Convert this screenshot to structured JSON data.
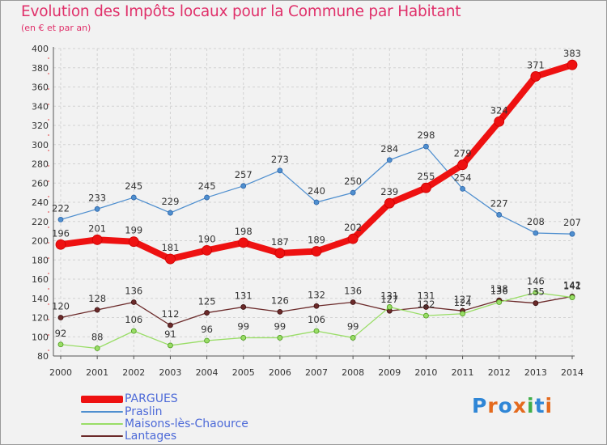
{
  "header": {
    "title": "Evolution des Impôts locaux pour la Commune par Habitant",
    "subtitle": "(en € et par an)"
  },
  "logo": {
    "text": "Proxiti",
    "colors": [
      "#2f86d6",
      "#e46a1e",
      "#2f86d6",
      "#e46a1e",
      "#3fae49",
      "#2f86d6",
      "#e46a1e"
    ]
  },
  "chart_data": {
    "type": "line",
    "x": [
      "2000",
      "2001",
      "2002",
      "2003",
      "2004",
      "2005",
      "2006",
      "2007",
      "2008",
      "2009",
      "2010",
      "2011",
      "2012",
      "2013",
      "2014"
    ],
    "ylim": [
      80,
      400
    ],
    "yticks": [
      80,
      100,
      120,
      140,
      160,
      180,
      200,
      220,
      240,
      260,
      280,
      300,
      320,
      340,
      360,
      380,
      400
    ],
    "grid": true,
    "legend_position": "bottom-left",
    "series": [
      {
        "name": "PARGUES",
        "color": "#ee1111",
        "values": [
          196,
          201,
          199,
          181,
          190,
          198,
          187,
          189,
          202,
          239,
          255,
          279,
          324,
          371,
          383
        ]
      },
      {
        "name": "Praslin",
        "color": "#4f8fcf",
        "values": [
          222,
          233,
          245,
          229,
          245,
          257,
          273,
          240,
          250,
          284,
          298,
          254,
          227,
          208,
          207
        ]
      },
      {
        "name": "Maisons-lès-Chaource",
        "color": "#99dd66",
        "values": [
          92,
          88,
          106,
          91,
          96,
          99,
          99,
          106,
          99,
          131,
          122,
          124,
          136,
          146,
          141
        ]
      },
      {
        "name": "Lantages",
        "color": "#6b2a2a",
        "values": [
          120,
          128,
          136,
          112,
          125,
          131,
          126,
          132,
          136,
          127,
          131,
          127,
          138,
          135,
          142
        ]
      }
    ]
  }
}
